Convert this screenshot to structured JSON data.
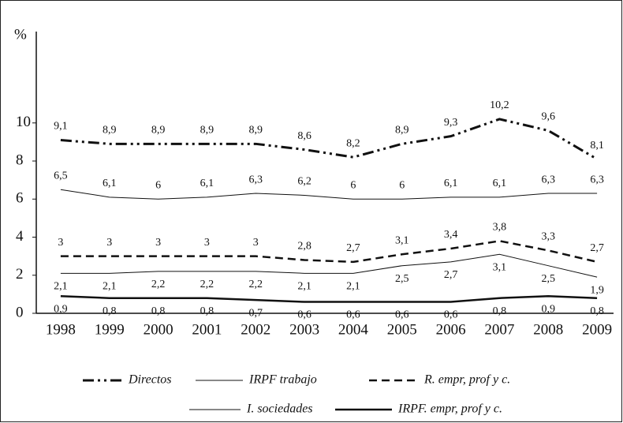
{
  "chart_data": {
    "type": "line",
    "y_label": "%",
    "categories": [
      "1998",
      "1999",
      "2000",
      "2001",
      "2002",
      "2003",
      "2004",
      "2005",
      "2006",
      "2007",
      "2008",
      "2009"
    ],
    "ylim": [
      0,
      14.8
    ],
    "yticks": [
      0,
      2,
      4,
      6,
      8,
      10
    ],
    "series": [
      {
        "name": "Directos",
        "color": "#111111",
        "linestyle": "dashdotdot",
        "linewidth": 3,
        "label_position": "above",
        "values": [
          9.1,
          8.9,
          8.9,
          8.9,
          8.9,
          8.6,
          8.2,
          8.9,
          9.3,
          10.2,
          9.6,
          8.1
        ],
        "value_labels": [
          "9,1",
          "8,9",
          "8,9",
          "8,9",
          "8,9",
          "8,6",
          "8,2",
          "8,9",
          "9,3",
          "10,2",
          "9,6",
          "8,1"
        ]
      },
      {
        "name": "IRPF trabajo",
        "color": "#111111",
        "linestyle": "solid",
        "linewidth": 1,
        "label_position": "above",
        "values": [
          6.5,
          6.1,
          6,
          6.1,
          6.3,
          6.2,
          6,
          6,
          6.1,
          6.1,
          6.3,
          6.3
        ],
        "value_labels": [
          "6,5",
          "6,1",
          "6",
          "6,1",
          "6,3",
          "6,2",
          "6",
          "6",
          "6,1",
          "6,1",
          "6,3",
          "6,3"
        ]
      },
      {
        "name": "R. empr, prof y c.",
        "color": "#111111",
        "linestyle": "dashed",
        "linewidth": 2.5,
        "label_position": "above",
        "values": [
          3,
          3,
          3,
          3,
          3,
          2.8,
          2.7,
          3.1,
          3.4,
          3.8,
          3.3,
          2.7
        ],
        "value_labels": [
          "3",
          "3",
          "3",
          "3",
          "3",
          "2,8",
          "2,7",
          "3,1",
          "3,4",
          "3,8",
          "3,3",
          "2,7"
        ]
      },
      {
        "name": "I. sociedades",
        "color": "#111111",
        "linestyle": "solid",
        "linewidth": 1,
        "label_position": "below",
        "values": [
          2.1,
          2.1,
          2.2,
          2.2,
          2.2,
          2.1,
          2.1,
          2.5,
          2.7,
          3.1,
          2.5,
          1.9
        ],
        "value_labels": [
          "2,1",
          "2,1",
          "2,2",
          "2,2",
          "2,2",
          "2,1",
          "2,1",
          "2,5",
          "2,7",
          "3,1",
          "2,5",
          "1,9"
        ]
      },
      {
        "name": "IRPF. empr, prof y c.",
        "color": "#111111",
        "linestyle": "solid",
        "linewidth": 2.5,
        "label_position": "below",
        "values": [
          0.9,
          0.8,
          0.8,
          0.8,
          0.7,
          0.6,
          0.6,
          0.6,
          0.6,
          0.8,
          0.9,
          0.8
        ],
        "value_labels": [
          "0,9",
          "0,8",
          "0,8",
          "0,8",
          "0,7",
          "0,6",
          "0,6",
          "0,6",
          "0,6",
          "0,8",
          "0,9",
          "0,8"
        ]
      }
    ]
  }
}
